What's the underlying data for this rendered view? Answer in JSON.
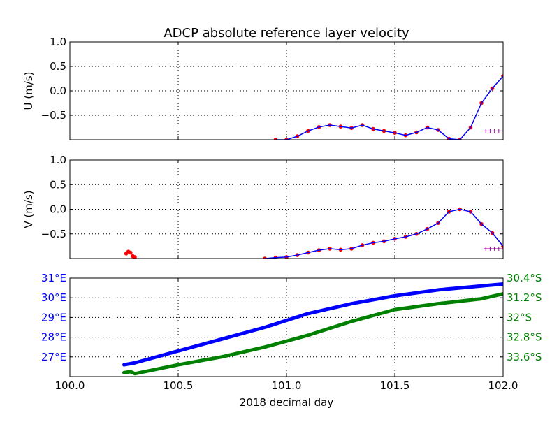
{
  "title": "ADCP absolute reference layer velocity",
  "xlabel": "2018 decimal day",
  "xlim": [
    100.0,
    102.0
  ],
  "xticks": [
    "100.0",
    "100.5",
    "101.0",
    "101.5",
    "102.0"
  ],
  "chart_data": [
    {
      "type": "line",
      "ylabel": "U (m/s)",
      "ylim": [
        -1.0,
        1.0
      ],
      "yticks": [
        "1.0",
        "0.5",
        "0.0",
        "−0.5"
      ],
      "grid": true,
      "series": [
        {
          "color": "#ff0000",
          "marker": "dot",
          "x": [
            100.95,
            101.0,
            101.05,
            101.1,
            101.15,
            101.2,
            101.25,
            101.3,
            101.35,
            101.4,
            101.45,
            101.5,
            101.55,
            101.6,
            101.65,
            101.7,
            101.75,
            101.8,
            101.85,
            101.9,
            101.95,
            102.0
          ],
          "y": [
            -1.0,
            -1.0,
            -0.93,
            -0.82,
            -0.74,
            -0.7,
            -0.73,
            -0.76,
            -0.7,
            -0.78,
            -0.82,
            -0.86,
            -0.91,
            -0.85,
            -0.75,
            -0.8,
            -0.98,
            -1.0,
            -0.75,
            -0.25,
            0.05,
            0.3
          ]
        },
        {
          "color": "#0000ff",
          "marker": "line",
          "x": [
            100.95,
            101.0,
            101.05,
            101.1,
            101.15,
            101.2,
            101.25,
            101.3,
            101.35,
            101.4,
            101.45,
            101.5,
            101.55,
            101.6,
            101.65,
            101.7,
            101.75,
            101.8,
            101.85,
            101.9,
            101.95,
            102.0
          ],
          "y": [
            -1.0,
            -1.0,
            -0.93,
            -0.82,
            -0.74,
            -0.7,
            -0.73,
            -0.76,
            -0.7,
            -0.78,
            -0.82,
            -0.86,
            -0.91,
            -0.85,
            -0.75,
            -0.8,
            -0.98,
            -1.0,
            -0.75,
            -0.25,
            0.05,
            0.3
          ]
        },
        {
          "color": "#aa00aa",
          "marker": "plus",
          "x": [
            101.92,
            101.94,
            101.96,
            101.98,
            102.0
          ],
          "y": [
            -0.82,
            -0.82,
            -0.82,
            -0.82,
            -0.82
          ]
        }
      ]
    },
    {
      "type": "line",
      "ylabel": "V (m/s)",
      "ylim": [
        -1.0,
        1.0
      ],
      "yticks": [
        "1.0",
        "0.5",
        "0.0",
        "−0.5"
      ],
      "grid": true,
      "series": [
        {
          "color": "#ff0000",
          "marker": "dot",
          "x": [
            100.26,
            100.27,
            100.28,
            100.29,
            100.3,
            100.9,
            100.95,
            101.0,
            101.05,
            101.1,
            101.15,
            101.2,
            101.25,
            101.3,
            101.35,
            101.4,
            101.45,
            101.5,
            101.55,
            101.6,
            101.65,
            101.7,
            101.75,
            101.8,
            101.85,
            101.9,
            101.95,
            102.0
          ],
          "y": [
            -0.9,
            -0.86,
            -0.88,
            -0.95,
            -0.97,
            -1.0,
            -0.98,
            -0.97,
            -0.93,
            -0.88,
            -0.83,
            -0.8,
            -0.82,
            -0.8,
            -0.73,
            -0.68,
            -0.65,
            -0.6,
            -0.56,
            -0.5,
            -0.4,
            -0.28,
            -0.05,
            0.0,
            -0.05,
            -0.3,
            -0.48,
            -0.75
          ]
        },
        {
          "color": "#0000ff",
          "marker": "line",
          "x": [
            100.9,
            100.95,
            101.0,
            101.05,
            101.1,
            101.15,
            101.2,
            101.25,
            101.3,
            101.35,
            101.4,
            101.45,
            101.5,
            101.55,
            101.6,
            101.65,
            101.7,
            101.75,
            101.8,
            101.85,
            101.9,
            101.95,
            102.0
          ],
          "y": [
            -1.0,
            -0.98,
            -0.97,
            -0.93,
            -0.88,
            -0.83,
            -0.8,
            -0.82,
            -0.8,
            -0.73,
            -0.68,
            -0.65,
            -0.6,
            -0.56,
            -0.5,
            -0.4,
            -0.28,
            -0.05,
            0.0,
            -0.05,
            -0.3,
            -0.48,
            -0.75
          ]
        },
        {
          "color": "#aa00aa",
          "marker": "plus",
          "x": [
            101.92,
            101.94,
            101.96,
            101.98,
            102.0
          ],
          "y": [
            -0.8,
            -0.8,
            -0.8,
            -0.8,
            -0.8
          ]
        }
      ]
    },
    {
      "type": "line",
      "ylim_left": [
        26.0,
        31.0
      ],
      "yticks_left": [
        "31°E",
        "30°E",
        "29°E",
        "28°E",
        "27°E"
      ],
      "left_color": "#0000ff",
      "yticks_right": [
        "30.4°S",
        "31.2°S",
        "32°S",
        "32.8°S",
        "33.6°S"
      ],
      "right_color": "#008000",
      "grid": true,
      "series": [
        {
          "color": "#0000ff",
          "x": [
            100.25,
            100.3,
            100.5,
            100.7,
            100.9,
            101.1,
            101.3,
            101.5,
            101.7,
            101.9,
            102.0
          ],
          "y": [
            26.6,
            26.7,
            27.3,
            27.9,
            28.5,
            29.2,
            29.7,
            30.1,
            30.4,
            30.6,
            30.7
          ]
        },
        {
          "color": "#008000",
          "x": [
            100.25,
            100.28,
            100.3,
            100.5,
            100.7,
            100.9,
            101.1,
            101.3,
            101.5,
            101.7,
            101.9,
            102.0
          ],
          "y": [
            26.2,
            26.25,
            26.15,
            26.6,
            27.0,
            27.5,
            28.1,
            28.8,
            29.4,
            29.7,
            29.95,
            30.2
          ]
        }
      ]
    }
  ]
}
